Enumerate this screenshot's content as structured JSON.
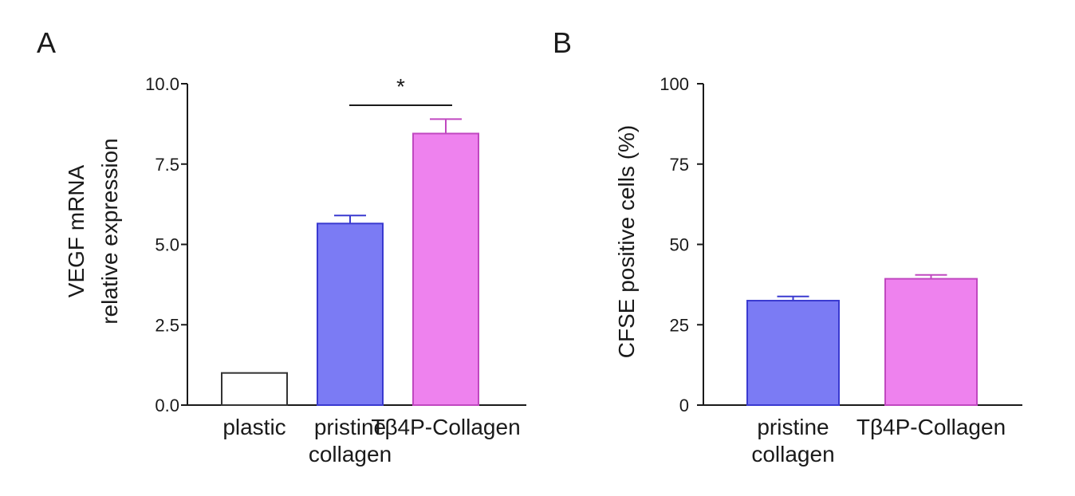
{
  "chart_data": [
    {
      "type": "bar",
      "panel_label": "A",
      "ylabel_lines": [
        "VEGF mRNA",
        "relative expression"
      ],
      "categories": [
        [
          "plastic"
        ],
        [
          "pristine",
          "collagen"
        ],
        [
          "Tβ4P-Collagen"
        ]
      ],
      "values": [
        1.0,
        5.65,
        8.45
      ],
      "errors": [
        0,
        0.25,
        0.45
      ],
      "colors": [
        "#ffffff",
        "#7b7bf4",
        "#ee82ee"
      ],
      "edge_colors": [
        "#333333",
        "#3a3ad0",
        "#c048c0"
      ],
      "ylim": [
        0,
        10
      ],
      "yticks": [
        "0.0",
        "2.5",
        "5.0",
        "7.5",
        "10.0"
      ],
      "significance": {
        "between": [
          1,
          2
        ],
        "label": "*"
      }
    },
    {
      "type": "bar",
      "panel_label": "B",
      "ylabel_lines": [
        "CFSE positive cells (%)"
      ],
      "categories": [
        [
          "pristine",
          "collagen"
        ],
        [
          "Tβ4P-Collagen"
        ]
      ],
      "values": [
        32.5,
        39.3
      ],
      "errors": [
        1.3,
        1.2
      ],
      "colors": [
        "#7b7bf4",
        "#ee82ee"
      ],
      "edge_colors": [
        "#3a3ad0",
        "#c048c0"
      ],
      "ylim": [
        0,
        100
      ],
      "yticks": [
        "0",
        "25",
        "50",
        "75",
        "100"
      ]
    }
  ]
}
